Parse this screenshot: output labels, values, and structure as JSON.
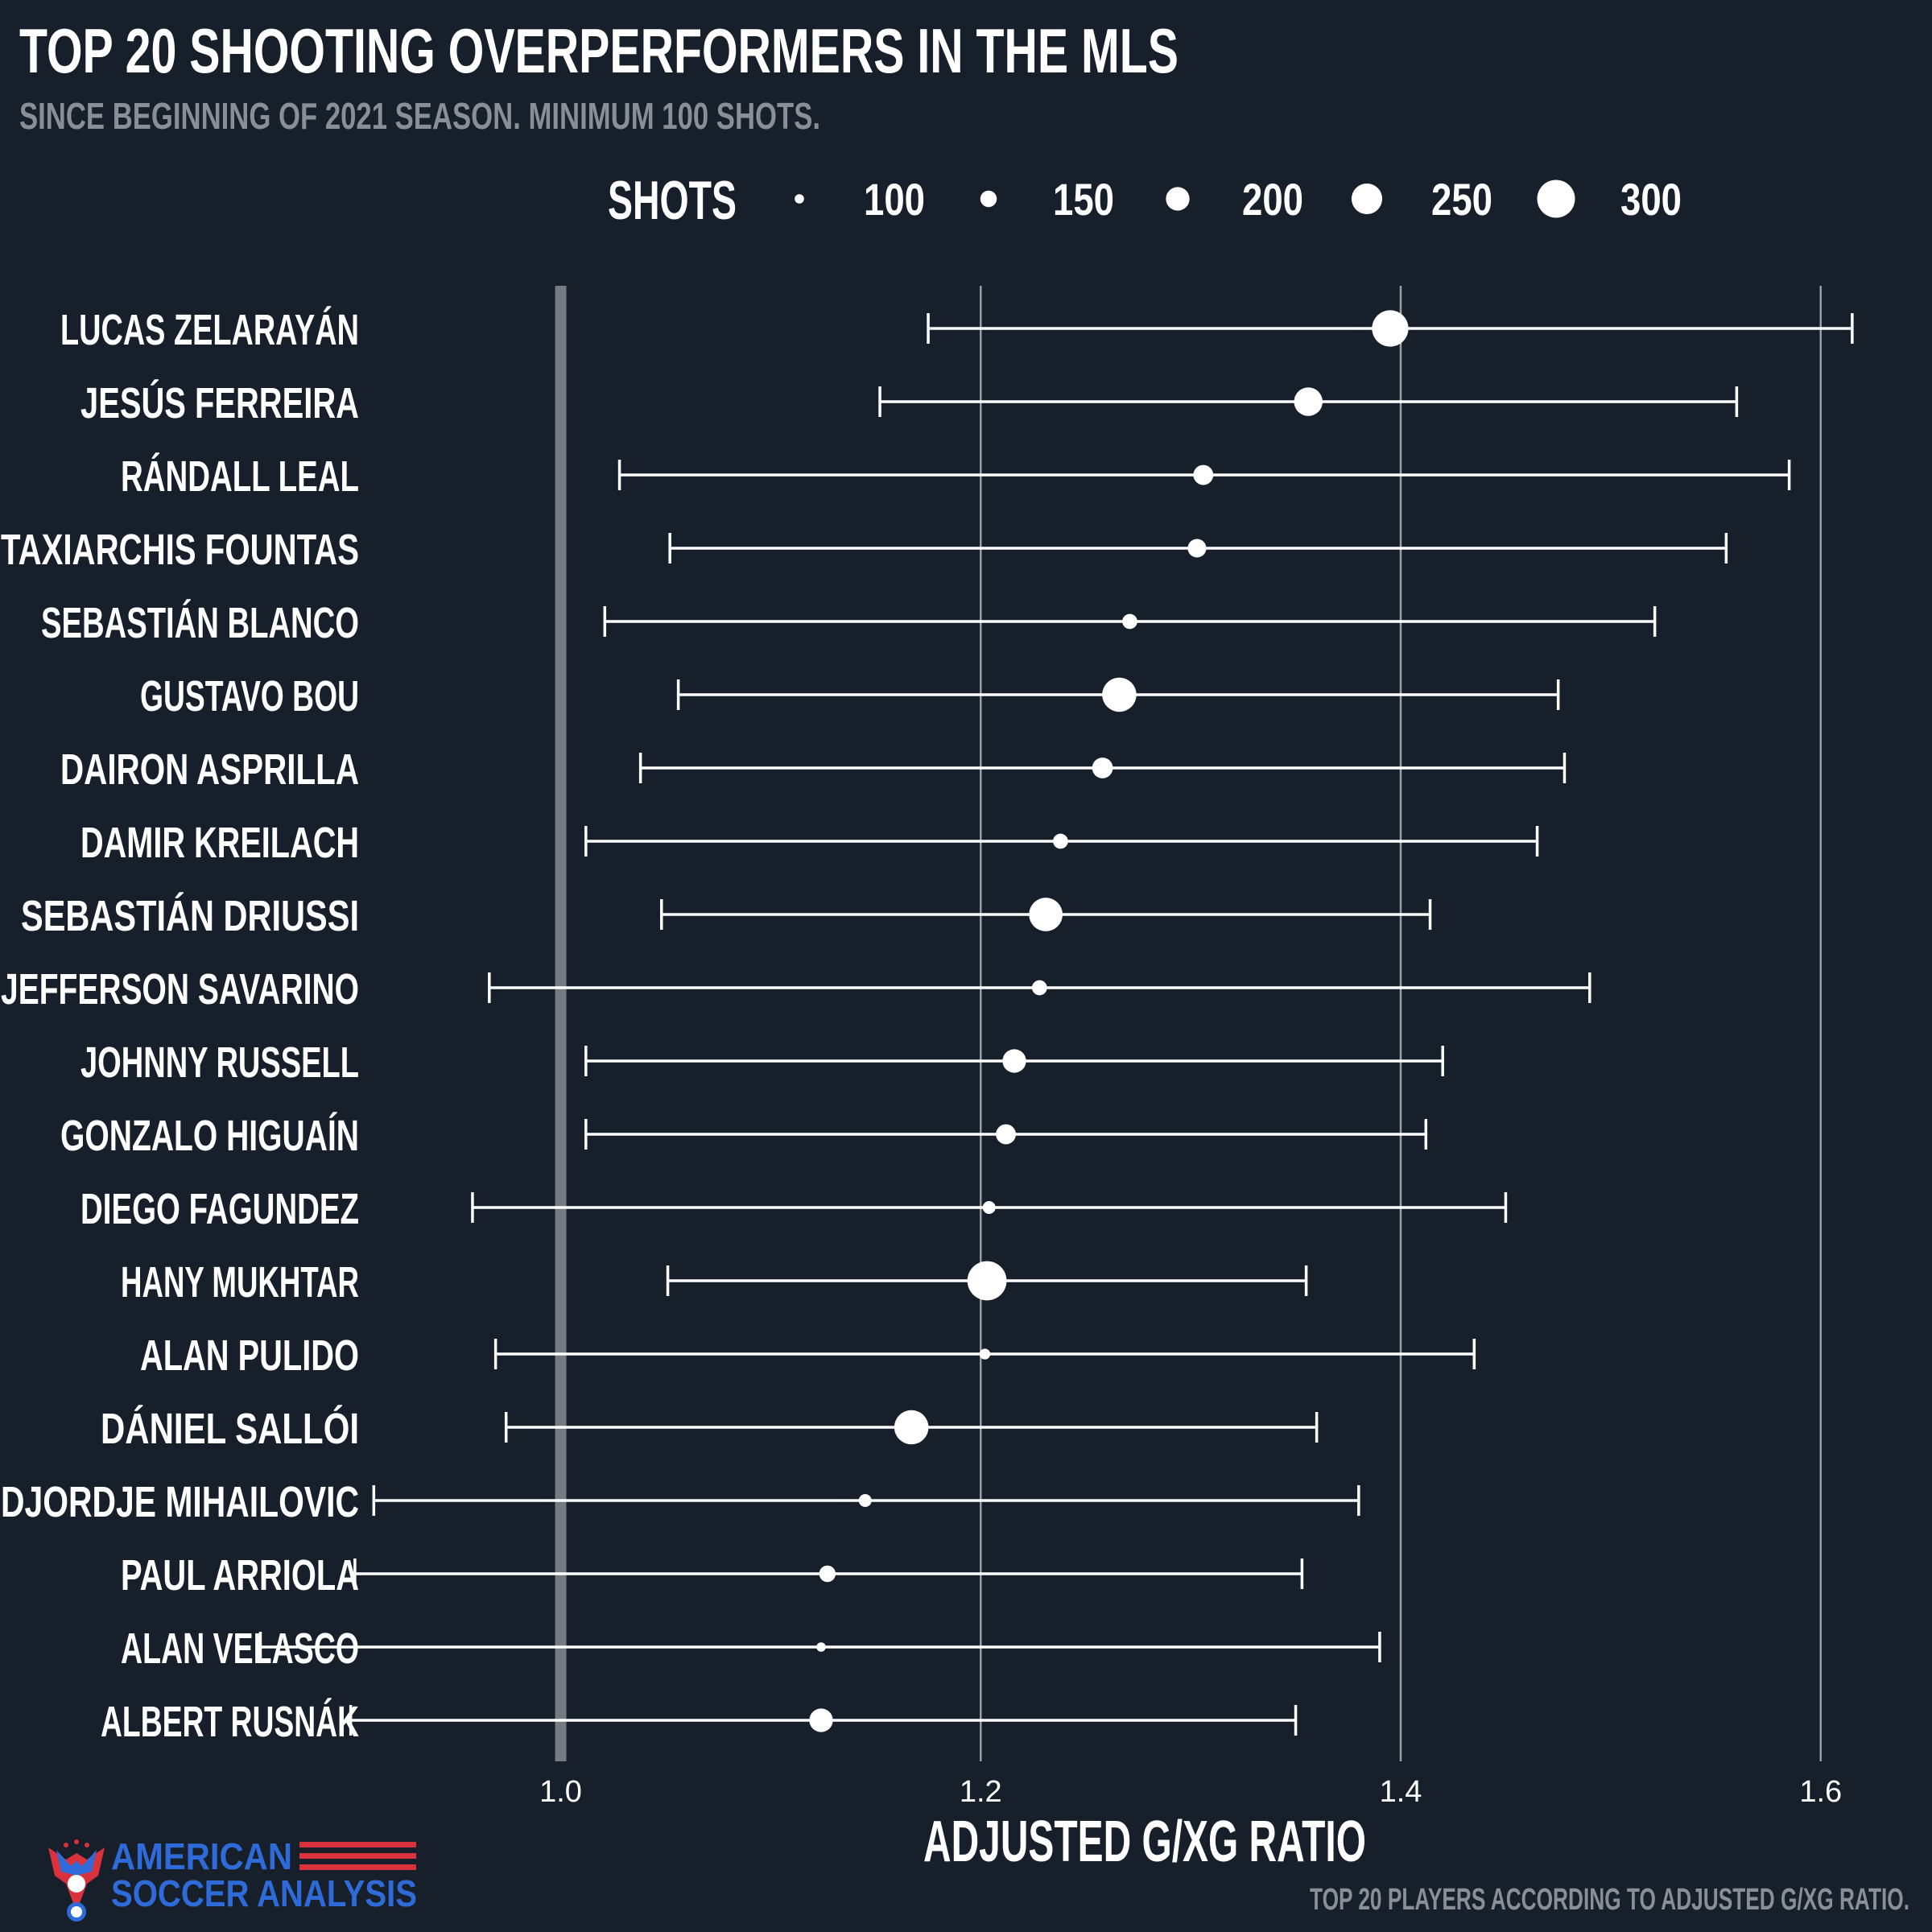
{
  "colors": {
    "background": "#17202a",
    "text": "#ffffff",
    "subtitle": "#8a8f96",
    "grid": "#9a9fa6",
    "reference_line": "#767b82",
    "logo_blue": "#2f6bd8",
    "logo_red": "#d9323c"
  },
  "footer": {
    "logo_line1": "AMERICAN",
    "logo_line2": "SOCCER ANALYSIS",
    "caption": "TOP 20 PLAYERS ACCORDING TO ADJUSTED G/XG RATIO."
  },
  "chart_data": {
    "type": "scatter",
    "title": "TOP 20 SHOOTING OVERPERFORMERS IN THE MLS",
    "subtitle": "SINCE BEGINNING OF 2021 SEASON. MINIMUM 100 SHOTS.",
    "xlabel": "ADJUSTED G/XG RATIO",
    "xlim": [
      0.733,
      1.653
    ],
    "xticks": [
      1.0,
      1.2,
      1.4,
      1.6
    ],
    "xtick_labels": [
      "1.0",
      "1.2",
      "1.4",
      "1.6"
    ],
    "reference_line": 1.0,
    "grid": "vertical",
    "size_legend": {
      "title": "SHOTS",
      "values": [
        100,
        150,
        200,
        250,
        300
      ],
      "labels": [
        "100",
        "150",
        "200",
        "250",
        "300"
      ]
    },
    "players": [
      {
        "name": "LUCAS ZELARAYÁN",
        "value": 1.395,
        "low": 1.175,
        "high": 1.615,
        "shots": 290
      },
      {
        "name": "JESÚS FERREIRA",
        "value": 1.356,
        "low": 1.152,
        "high": 1.56,
        "shots": 235
      },
      {
        "name": "RÁNDALL LEAL",
        "value": 1.306,
        "low": 1.028,
        "high": 1.585,
        "shots": 175
      },
      {
        "name": "TAXIARCHIS FOUNTAS",
        "value": 1.303,
        "low": 1.052,
        "high": 1.555,
        "shots": 165
      },
      {
        "name": "SEBASTIÁN BLANCO",
        "value": 1.271,
        "low": 1.021,
        "high": 1.521,
        "shots": 140
      },
      {
        "name": "GUSTAVO BOU",
        "value": 1.266,
        "low": 1.056,
        "high": 1.475,
        "shots": 275
      },
      {
        "name": "DAIRON ASPRILLA",
        "value": 1.258,
        "low": 1.038,
        "high": 1.478,
        "shots": 180
      },
      {
        "name": "DAMIR KREILACH",
        "value": 1.238,
        "low": 1.012,
        "high": 1.465,
        "shots": 140
      },
      {
        "name": "SEBASTIÁN DRIUSSI",
        "value": 1.231,
        "low": 1.048,
        "high": 1.414,
        "shots": 270
      },
      {
        "name": "JEFFERSON SAVARINO",
        "value": 1.228,
        "low": 0.966,
        "high": 1.49,
        "shots": 140
      },
      {
        "name": "JOHNNY RUSSELL",
        "value": 1.216,
        "low": 1.012,
        "high": 1.42,
        "shots": 200
      },
      {
        "name": "GONZALO HIGUAÍN",
        "value": 1.212,
        "low": 1.012,
        "high": 1.412,
        "shots": 175
      },
      {
        "name": "DIEGO FAGUNDEZ",
        "value": 1.204,
        "low": 0.958,
        "high": 1.45,
        "shots": 125
      },
      {
        "name": "HANY MUKHTAR",
        "value": 1.203,
        "low": 1.051,
        "high": 1.355,
        "shots": 310
      },
      {
        "name": "ALAN PULIDO",
        "value": 1.202,
        "low": 0.969,
        "high": 1.435,
        "shots": 110
      },
      {
        "name": "DÁNIEL SALLÓI",
        "value": 1.167,
        "low": 0.974,
        "high": 1.36,
        "shots": 275
      },
      {
        "name": "DJORDJE MIHAILOVIC",
        "value": 1.145,
        "low": 0.911,
        "high": 1.38,
        "shots": 125
      },
      {
        "name": "PAUL ARRIOLA",
        "value": 1.127,
        "low": 0.902,
        "high": 1.353,
        "shots": 150
      },
      {
        "name": "ALAN VELASCO",
        "value": 1.124,
        "low": 0.857,
        "high": 1.39,
        "shots": 100
      },
      {
        "name": "ALBERT RUSNÁK",
        "value": 1.124,
        "low": 0.9,
        "high": 1.35,
        "shots": 200
      }
    ]
  }
}
